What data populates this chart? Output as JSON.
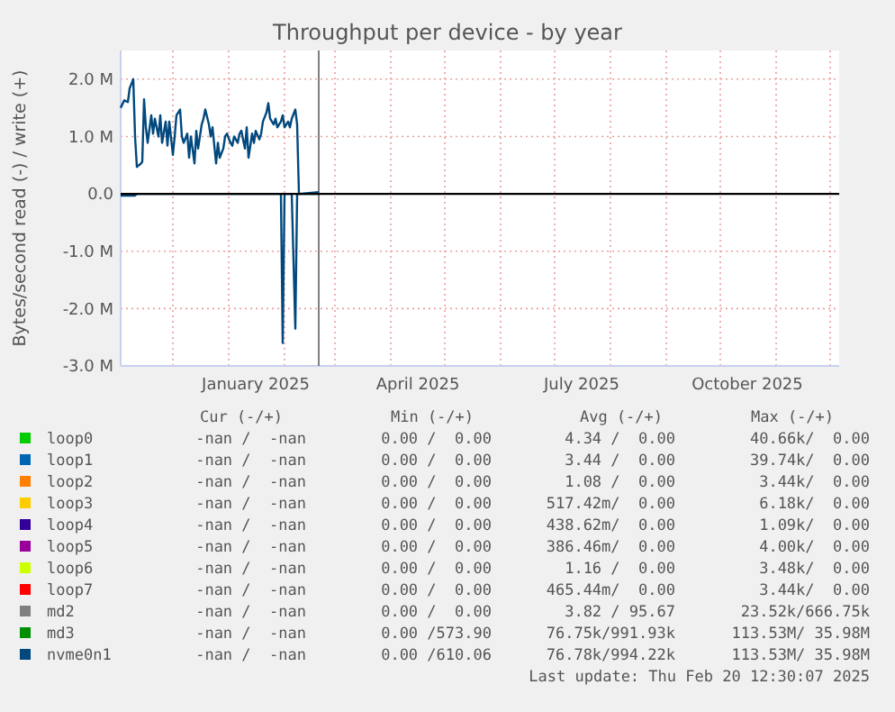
{
  "chart_data": {
    "type": "line",
    "title": "Throughput per device - by year",
    "ylabel": "Bytes/second read (-) / write (+)",
    "x": [
      "2024-11-02",
      "2024-11-04",
      "2024-11-06",
      "2024-11-07",
      "2024-11-09",
      "2024-11-10",
      "2024-11-11",
      "2024-11-13",
      "2024-11-14",
      "2024-11-15",
      "2024-11-16",
      "2024-11-17",
      "2024-11-19",
      "2024-11-20",
      "2024-11-21",
      "2024-11-23",
      "2024-11-24",
      "2024-11-25",
      "2024-11-27",
      "2024-11-28",
      "2024-11-29",
      "2024-12-01",
      "2024-12-02",
      "2024-12-03",
      "2024-12-05",
      "2024-12-06",
      "2024-12-07",
      "2024-12-09",
      "2024-12-10",
      "2024-12-11",
      "2024-12-13",
      "2024-12-14",
      "2024-12-15",
      "2024-12-17",
      "2024-12-18",
      "2024-12-19",
      "2024-12-21",
      "2024-12-22",
      "2024-12-23",
      "2024-12-25",
      "2024-12-26",
      "2024-12-27",
      "2024-12-29",
      "2024-12-30",
      "2024-12-31",
      "2025-01-02",
      "2025-01-03",
      "2025-01-04",
      "2025-01-06",
      "2025-01-07",
      "2025-01-08",
      "2025-01-10",
      "2025-01-11",
      "2025-01-12",
      "2025-01-14",
      "2025-01-15",
      "2025-01-16",
      "2025-01-18",
      "2025-01-19",
      "2025-01-20",
      "2025-01-22",
      "2025-01-23",
      "2025-01-24",
      "2025-01-26",
      "2025-01-27",
      "2025-01-28",
      "2025-01-30",
      "2025-01-31",
      "2025-02-01",
      "2025-02-03",
      "2025-02-04",
      "2025-02-05",
      "2025-02-07",
      "2025-02-08",
      "2025-02-09",
      "2025-02-20"
    ],
    "series": [
      {
        "name": "loop0",
        "color": "#00cc00",
        "values": [
          null,
          null,
          null,
          null,
          null,
          null,
          null,
          null,
          null,
          null,
          null,
          null,
          null,
          null,
          null,
          null,
          null,
          null,
          null,
          null,
          null,
          null,
          null,
          null,
          null,
          null,
          null,
          null,
          null,
          null,
          null,
          null,
          null,
          null,
          null,
          null,
          null,
          null,
          null,
          null,
          null,
          null,
          null,
          null,
          null,
          null,
          null,
          null,
          null,
          null,
          null,
          null,
          null,
          null,
          null,
          null,
          null,
          null,
          null,
          null,
          null,
          null,
          null,
          null,
          null,
          null,
          null,
          null,
          null,
          null,
          null,
          null,
          null,
          null,
          null,
          null
        ]
      },
      {
        "name": "loop1",
        "color": "#0066b3",
        "values": [
          null,
          null,
          null,
          null,
          null,
          null,
          null,
          null,
          null,
          null,
          null,
          null,
          null,
          null,
          null,
          null,
          null,
          null,
          null,
          null,
          null,
          null,
          null,
          null,
          null,
          null,
          null,
          null,
          null,
          null,
          null,
          null,
          null,
          null,
          null,
          null,
          null,
          null,
          null,
          null,
          null,
          null,
          null,
          null,
          null,
          null,
          null,
          null,
          null,
          null,
          null,
          null,
          null,
          null,
          null,
          null,
          null,
          null,
          null,
          null,
          null,
          null,
          null,
          null,
          null,
          null,
          null,
          null,
          null,
          null,
          null,
          null,
          null,
          null,
          null,
          null
        ]
      },
      {
        "name": "loop2",
        "color": "#ff8000",
        "values": [
          null,
          null,
          null,
          null,
          null,
          null,
          null,
          null,
          null,
          null,
          null,
          null,
          null,
          null,
          null,
          null,
          null,
          null,
          null,
          null,
          null,
          null,
          null,
          null,
          null,
          null,
          null,
          null,
          null,
          null,
          null,
          null,
          null,
          null,
          null,
          null,
          null,
          null,
          null,
          null,
          null,
          null,
          null,
          null,
          null,
          null,
          null,
          null,
          null,
          null,
          null,
          null,
          null,
          null,
          null,
          null,
          null,
          null,
          null,
          null,
          null,
          null,
          null,
          null,
          null,
          null,
          null,
          null,
          null,
          null,
          null,
          null,
          null,
          null,
          null,
          null
        ]
      },
      {
        "name": "loop3",
        "color": "#ffcc00",
        "values": [
          null,
          null,
          null,
          null,
          null,
          null,
          null,
          null,
          null,
          null,
          null,
          null,
          null,
          null,
          null,
          null,
          null,
          null,
          null,
          null,
          null,
          null,
          null,
          null,
          null,
          null,
          null,
          null,
          null,
          null,
          null,
          null,
          null,
          null,
          null,
          null,
          null,
          null,
          null,
          null,
          null,
          null,
          null,
          null,
          null,
          null,
          null,
          null,
          null,
          null,
          null,
          null,
          null,
          null,
          null,
          null,
          null,
          null,
          null,
          null,
          null,
          null,
          null,
          null,
          null,
          null,
          null,
          null,
          null,
          null,
          null,
          null,
          null,
          null,
          null,
          null
        ]
      },
      {
        "name": "loop4",
        "color": "#330099",
        "values": [
          null,
          null,
          null,
          null,
          null,
          null,
          null,
          null,
          null,
          null,
          null,
          null,
          null,
          null,
          null,
          null,
          null,
          null,
          null,
          null,
          null,
          null,
          null,
          null,
          null,
          null,
          null,
          null,
          null,
          null,
          null,
          null,
          null,
          null,
          null,
          null,
          null,
          null,
          null,
          null,
          null,
          null,
          null,
          null,
          null,
          null,
          null,
          null,
          null,
          null,
          null,
          null,
          null,
          null,
          null,
          null,
          null,
          null,
          null,
          null,
          null,
          null,
          null,
          null,
          null,
          null,
          null,
          null,
          null,
          null,
          null,
          null,
          null,
          null,
          null,
          null
        ]
      },
      {
        "name": "loop5",
        "color": "#990099",
        "values": [
          null,
          null,
          null,
          null,
          null,
          null,
          null,
          null,
          null,
          null,
          null,
          null,
          null,
          null,
          null,
          null,
          null,
          null,
          null,
          null,
          null,
          null,
          null,
          null,
          null,
          null,
          null,
          null,
          null,
          null,
          null,
          null,
          null,
          null,
          null,
          null,
          null,
          null,
          null,
          null,
          null,
          null,
          null,
          null,
          null,
          null,
          null,
          null,
          null,
          null,
          null,
          null,
          null,
          null,
          null,
          null,
          null,
          null,
          null,
          null,
          null,
          null,
          null,
          null,
          null,
          null,
          null,
          null,
          null,
          null,
          null,
          null,
          null,
          null,
          null,
          null
        ]
      },
      {
        "name": "loop6",
        "color": "#ccff00",
        "values": [
          null,
          null,
          null,
          null,
          null,
          null,
          null,
          null,
          null,
          null,
          null,
          null,
          null,
          null,
          null,
          null,
          null,
          null,
          null,
          null,
          null,
          null,
          null,
          null,
          null,
          null,
          null,
          null,
          null,
          null,
          null,
          null,
          null,
          null,
          null,
          null,
          null,
          null,
          null,
          null,
          null,
          null,
          null,
          null,
          null,
          null,
          null,
          null,
          null,
          null,
          null,
          null,
          null,
          null,
          null,
          null,
          null,
          null,
          null,
          null,
          null,
          null,
          null,
          null,
          null,
          null,
          null,
          null,
          null,
          null,
          null,
          null,
          null,
          null,
          null,
          null
        ]
      },
      {
        "name": "loop7",
        "color": "#ff0000",
        "values": [
          null,
          null,
          null,
          null,
          null,
          null,
          null,
          null,
          null,
          null,
          null,
          null,
          null,
          null,
          null,
          null,
          null,
          null,
          null,
          null,
          null,
          null,
          null,
          null,
          null,
          null,
          null,
          null,
          null,
          null,
          null,
          null,
          null,
          null,
          null,
          null,
          null,
          null,
          null,
          null,
          null,
          null,
          null,
          null,
          null,
          null,
          null,
          null,
          null,
          null,
          null,
          null,
          null,
          null,
          null,
          null,
          null,
          null,
          null,
          null,
          null,
          null,
          null,
          null,
          null,
          null,
          null,
          null,
          null,
          null,
          null,
          null,
          null,
          null,
          null,
          null
        ]
      },
      {
        "name": "md2",
        "color": "#808080",
        "values": [
          null,
          null,
          null,
          null,
          null,
          null,
          null,
          null,
          null,
          null,
          null,
          null,
          null,
          null,
          null,
          null,
          null,
          null,
          null,
          null,
          null,
          null,
          null,
          null,
          null,
          null,
          null,
          null,
          null,
          null,
          null,
          null,
          null,
          null,
          null,
          null,
          null,
          null,
          null,
          null,
          null,
          null,
          null,
          null,
          null,
          null,
          null,
          null,
          null,
          null,
          null,
          null,
          null,
          null,
          null,
          null,
          null,
          null,
          null,
          null,
          null,
          null,
          null,
          null,
          null,
          null,
          null,
          null,
          null,
          null,
          null,
          null,
          null,
          null,
          null,
          null
        ]
      },
      {
        "name": "md3",
        "color": "#008f00",
        "values": [
          null,
          null,
          null,
          null,
          null,
          null,
          null,
          null,
          null,
          null,
          null,
          null,
          null,
          null,
          null,
          null,
          null,
          null,
          null,
          null,
          null,
          null,
          null,
          null,
          null,
          null,
          null,
          null,
          null,
          null,
          null,
          null,
          null,
          null,
          null,
          null,
          null,
          null,
          null,
          null,
          null,
          null,
          null,
          null,
          null,
          null,
          null,
          null,
          null,
          null,
          null,
          null,
          null,
          null,
          null,
          null,
          null,
          null,
          null,
          null,
          null,
          null,
          null,
          null,
          null,
          null,
          null,
          null,
          null,
          null,
          null,
          null,
          null,
          null,
          null,
          null
        ]
      },
      {
        "name": "nvme0n1",
        "color": "#00487d",
        "values": [
          1500000,
          1630000,
          1600000,
          1840000,
          2000000,
          1000000,
          470000,
          520000,
          560000,
          1650000,
          1160000,
          890000,
          1370000,
          1050000,
          1310000,
          1000000,
          1370000,
          890000,
          1260000,
          840000,
          1260000,
          680000,
          1000000,
          1370000,
          1470000,
          1000000,
          890000,
          1050000,
          630000,
          1000000,
          530000,
          1100000,
          790000,
          1210000,
          1310000,
          1470000,
          1210000,
          1000000,
          1160000,
          530000,
          890000,
          630000,
          790000,
          1000000,
          1050000,
          890000,
          840000,
          1000000,
          890000,
          1050000,
          1100000,
          790000,
          1160000,
          630000,
          1050000,
          890000,
          1100000,
          950000,
          1050000,
          1260000,
          1420000,
          1580000,
          1310000,
          1210000,
          1310000,
          1160000,
          1260000,
          1370000,
          1160000,
          1260000,
          1160000,
          1310000,
          1470000,
          1210000,
          0,
          30000
        ]
      },
      {
        "color": "#00487d",
        "values": [
          -30000,
          -30000,
          -30000,
          -30000,
          -30000,
          -30000,
          0,
          0,
          0,
          0,
          0,
          0,
          0,
          0,
          0,
          0,
          0,
          0,
          0,
          0,
          0,
          0,
          0,
          0,
          0,
          0,
          0,
          0,
          0,
          0,
          0,
          0,
          0,
          0,
          0,
          0,
          0,
          0,
          0,
          0,
          0,
          0,
          0,
          0,
          0,
          0,
          0,
          0,
          0,
          0,
          0,
          0,
          0,
          0,
          0,
          0,
          0,
          0,
          0,
          0,
          0,
          0,
          0,
          0,
          0,
          0,
          0,
          -2600000,
          0,
          0,
          0,
          0,
          -2350000,
          0,
          0,
          0
        ]
      }
    ],
    "xlim": [
      "2024-11-02",
      "2025-12-06"
    ],
    "xticks": [
      {
        "value": "2024-12-01",
        "label": null
      },
      {
        "value": "2025-01-01",
        "label": null
      },
      {
        "value": "2025-01-16",
        "label": "January 2025"
      },
      {
        "value": "2025-02-01",
        "label": null
      },
      {
        "value": "2025-03-01",
        "label": null
      },
      {
        "value": "2025-04-01",
        "label": null
      },
      {
        "value": "2025-04-16",
        "label": "April 2025"
      },
      {
        "value": "2025-05-01",
        "label": null
      },
      {
        "value": "2025-06-01",
        "label": null
      },
      {
        "value": "2025-07-01",
        "label": null
      },
      {
        "value": "2025-07-16",
        "label": "July 2025"
      },
      {
        "value": "2025-08-01",
        "label": null
      },
      {
        "value": "2025-09-01",
        "label": null
      },
      {
        "value": "2025-10-01",
        "label": null
      },
      {
        "value": "2025-10-16",
        "label": "October 2025"
      },
      {
        "value": "2025-11-01",
        "label": null
      },
      {
        "value": "2025-12-01",
        "label": null
      }
    ],
    "ylim": [
      -3000000,
      2500000
    ],
    "yticks": [
      {
        "value": -3000000,
        "label": "-3.0 M"
      },
      {
        "value": -2000000,
        "label": "-2.0 M"
      },
      {
        "value": -1000000,
        "label": "-1.0 M"
      },
      {
        "value": 0,
        "label": "0.0"
      },
      {
        "value": 1000000,
        "label": "1.0 M"
      },
      {
        "value": 2000000,
        "label": "2.0 M"
      }
    ],
    "grid": true,
    "legend": "bottom",
    "line_style": "solid",
    "ref_lines": [
      {
        "axis": "y",
        "value": 0,
        "color": "#000000"
      },
      {
        "axis": "x",
        "value": "2025-02-20",
        "color": "#808080"
      }
    ],
    "annotations": [
      "Cur (-/+)",
      "Min (-/+)",
      "Avg (-/+)",
      "Max (-/+)",
      "-nan /  -nan",
      "0.00 /  0.00",
      "4.34 /  0.00",
      "40.66k/  0.00",
      "-nan /  -nan",
      "0.00 /  0.00",
      "3.44 /  0.00",
      "39.74k/  0.00",
      "-nan /  -nan",
      "0.00 /  0.00",
      "1.08 /  0.00",
      "3.44k/  0.00",
      "-nan /  -nan",
      "0.00 /  0.00",
      "517.42m/  0.00",
      "6.18k/  0.00",
      "-nan /  -nan",
      "0.00 /  0.00",
      "438.62m/  0.00",
      "1.09k/  0.00",
      "-nan /  -nan",
      "0.00 /  0.00",
      "386.46m/  0.00",
      "4.00k/  0.00",
      "-nan /  -nan",
      "0.00 /  0.00",
      "1.16 /  0.00",
      "3.48k/  0.00",
      "-nan /  -nan",
      "0.00 /  0.00",
      "465.44m/  0.00",
      "3.44k/  0.00",
      "-nan /  -nan",
      "0.00 /  0.00",
      "3.82 / 95.67",
      "23.52k/666.75k",
      "-nan /  -nan",
      "0.00 /573.90",
      "76.75k/991.93k",
      "113.53M/ 35.98M",
      "-nan /  -nan",
      "0.00 /610.06",
      "76.78k/994.22k",
      "113.53M/ 35.98M",
      "Last update: Thu Feb 20 12:30:07 2025"
    ]
  }
}
